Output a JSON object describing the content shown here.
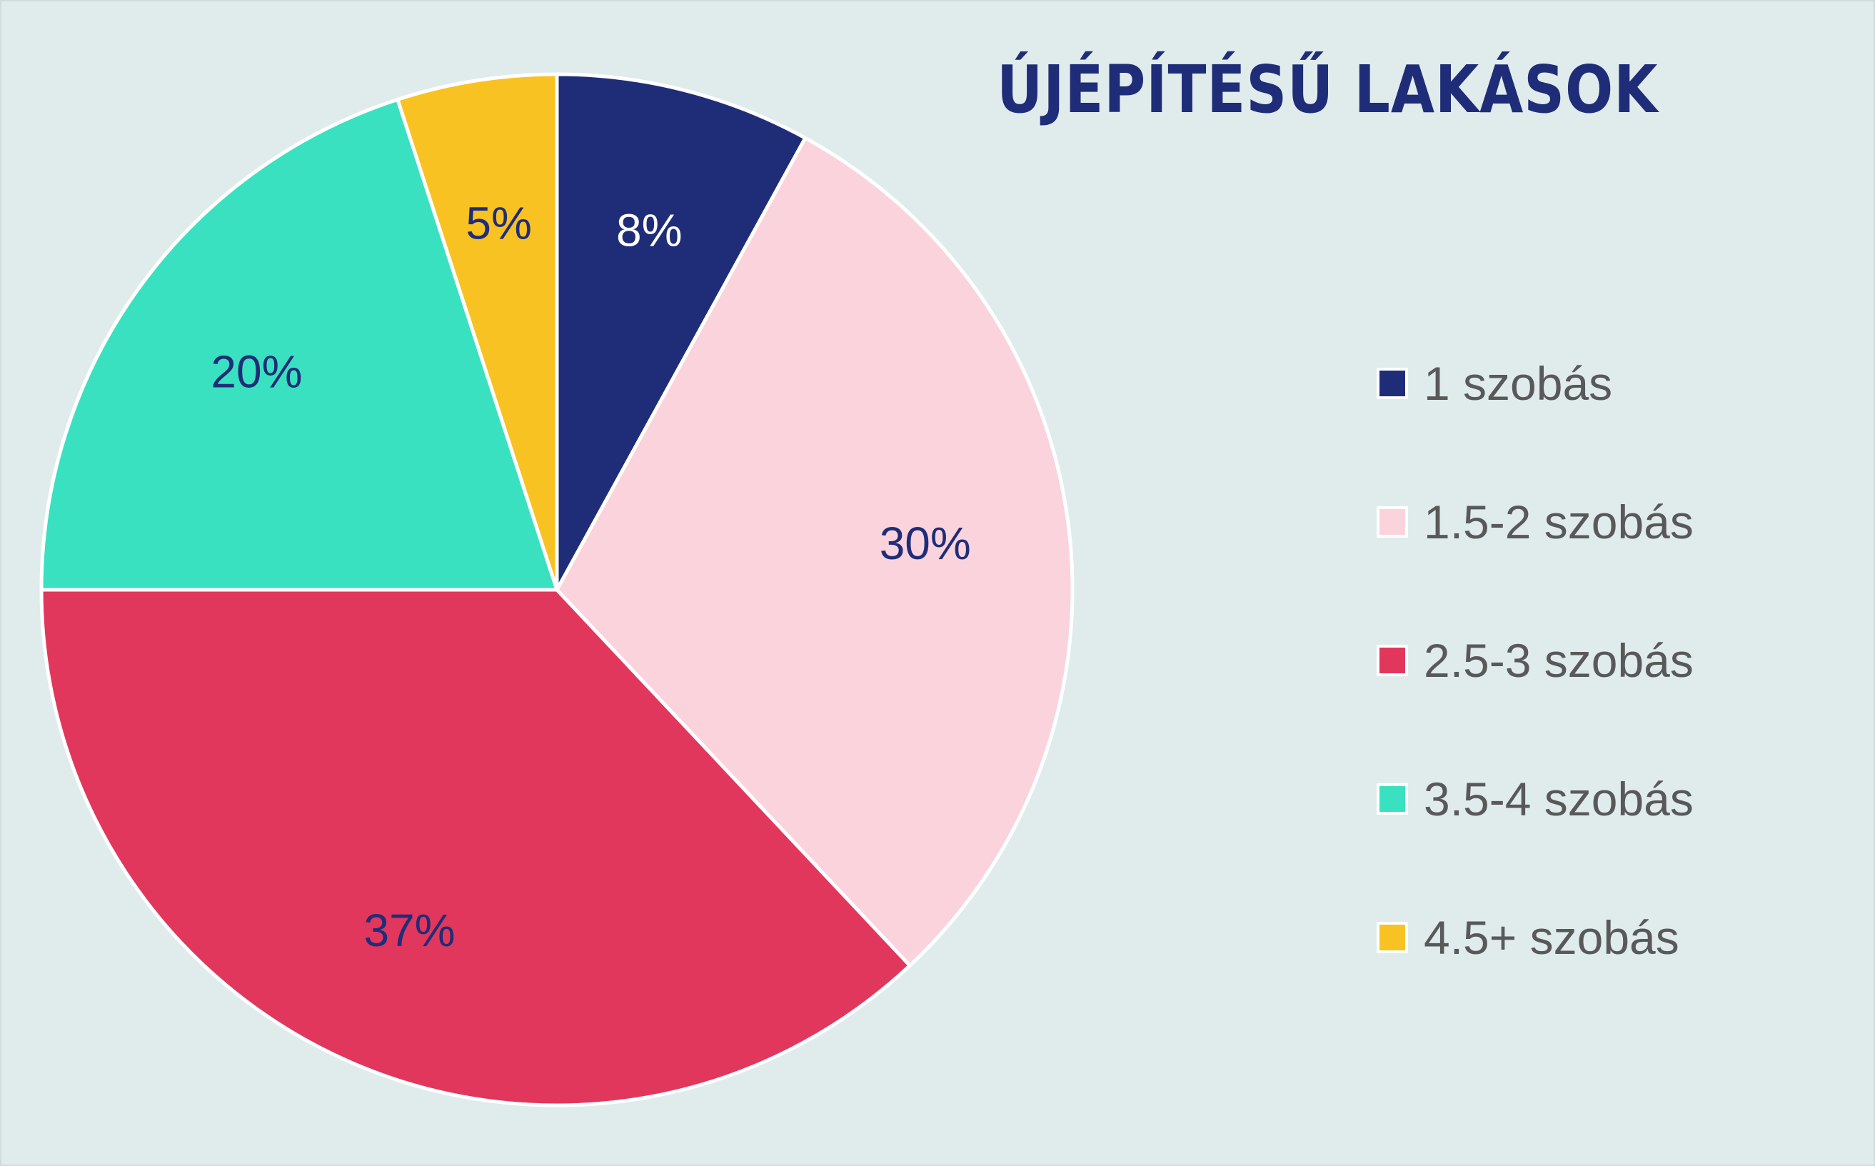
{
  "chart_data": {
    "type": "pie",
    "title": "ÚJÉPÍTÉSŰ LAKÁSOK",
    "categories": [
      "1 szobás",
      "1.5-2 szobás",
      "2.5-3 szobás",
      "3.5-4 szobás",
      "4.5+ szobás"
    ],
    "values": [
      8,
      30,
      37,
      20,
      5
    ],
    "data_labels": [
      "8%",
      "30%",
      "37%",
      "20%",
      "5%"
    ],
    "colors": [
      "#1f2d78",
      "#fad3dc",
      "#e1375c",
      "#39e1c0",
      "#f8c223"
    ],
    "label_colors": [
      "#ffffff",
      "#1f2d78",
      "#1f2d78",
      "#1f2d78",
      "#1f2d78"
    ],
    "start_angle": "12-o-clock",
    "direction": "clockwise",
    "legend_position": "right"
  }
}
